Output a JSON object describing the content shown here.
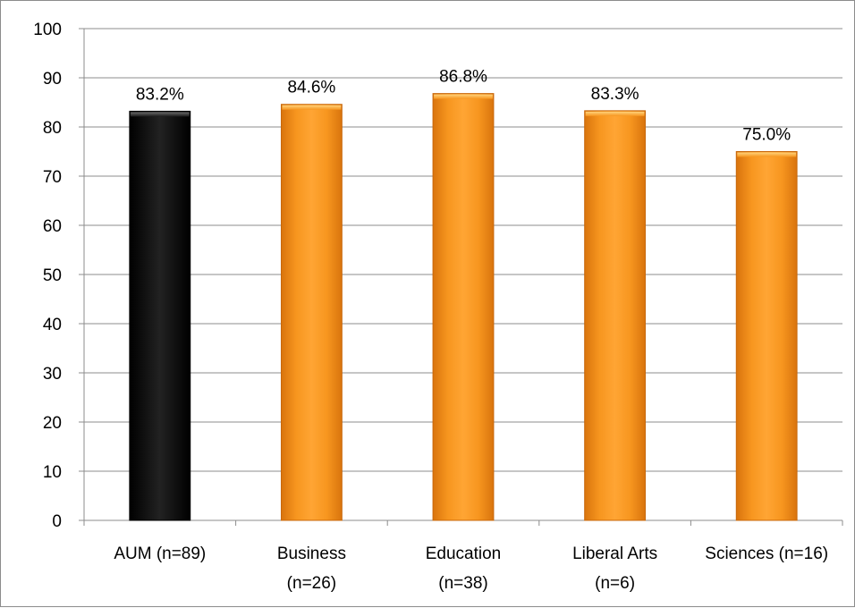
{
  "chart_data": {
    "type": "bar",
    "categories": [
      [
        "AUM (n=89)"
      ],
      [
        "Business",
        "(n=26)"
      ],
      [
        "Education",
        "(n=38)"
      ],
      [
        "Liberal Arts",
        "(n=6)"
      ],
      [
        "Sciences (n=16)"
      ]
    ],
    "values": [
      83.2,
      84.6,
      86.8,
      83.3,
      75.0
    ],
    "data_labels": [
      "83.2%",
      "84.6%",
      "86.8%",
      "83.3%",
      "75.0%"
    ],
    "bar_colors": [
      "#111111",
      "#f7941d",
      "#f7941d",
      "#f7941d",
      "#f7941d"
    ],
    "ylim": [
      0,
      100
    ],
    "yticks": [
      0,
      10,
      20,
      30,
      40,
      50,
      60,
      70,
      80,
      90,
      100
    ],
    "grid": true,
    "title": "",
    "xlabel": "",
    "ylabel": ""
  }
}
